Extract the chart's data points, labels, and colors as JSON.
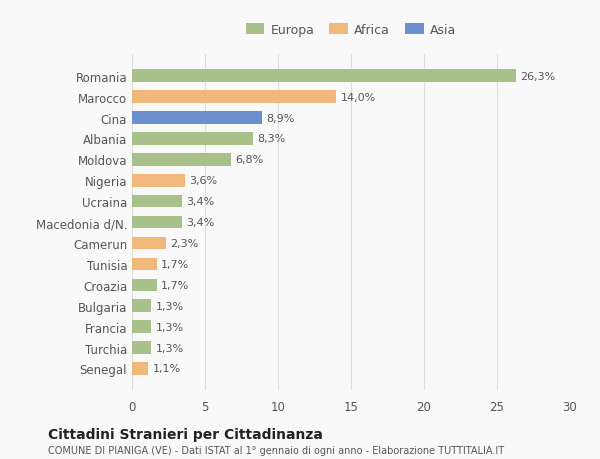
{
  "categories": [
    "Romania",
    "Marocco",
    "Cina",
    "Albania",
    "Moldova",
    "Nigeria",
    "Ucraina",
    "Macedonia d/N.",
    "Camerun",
    "Tunisia",
    "Croazia",
    "Bulgaria",
    "Francia",
    "Turchia",
    "Senegal"
  ],
  "values": [
    26.3,
    14.0,
    8.9,
    8.3,
    6.8,
    3.6,
    3.4,
    3.4,
    2.3,
    1.7,
    1.7,
    1.3,
    1.3,
    1.3,
    1.1
  ],
  "labels": [
    "26,3%",
    "14,0%",
    "8,9%",
    "8,3%",
    "6,8%",
    "3,6%",
    "3,4%",
    "3,4%",
    "2,3%",
    "1,7%",
    "1,7%",
    "1,3%",
    "1,3%",
    "1,3%",
    "1,1%"
  ],
  "colors": [
    "#a8c08a",
    "#f0b87a",
    "#6b8fcf",
    "#a8c08a",
    "#a8c08a",
    "#f0b87a",
    "#a8c08a",
    "#a8c08a",
    "#f0b87a",
    "#f0b87a",
    "#a8c08a",
    "#a8c08a",
    "#a8c08a",
    "#a8c08a",
    "#f0b87a"
  ],
  "legend": {
    "Europa": "#a8c08a",
    "Africa": "#f0b87a",
    "Asia": "#6b8fcf"
  },
  "xlim": [
    0,
    30
  ],
  "xticks": [
    0,
    5,
    10,
    15,
    20,
    25,
    30
  ],
  "title": "Cittadini Stranieri per Cittadinanza",
  "subtitle": "COMUNE DI PIANIGA (VE) - Dati ISTAT al 1° gennaio di ogni anno - Elaborazione TUTTITALIA.IT",
  "background_color": "#f9f9f9",
  "grid_color": "#dddddd",
  "bar_height": 0.6,
  "text_color": "#555555",
  "title_color": "#222222"
}
